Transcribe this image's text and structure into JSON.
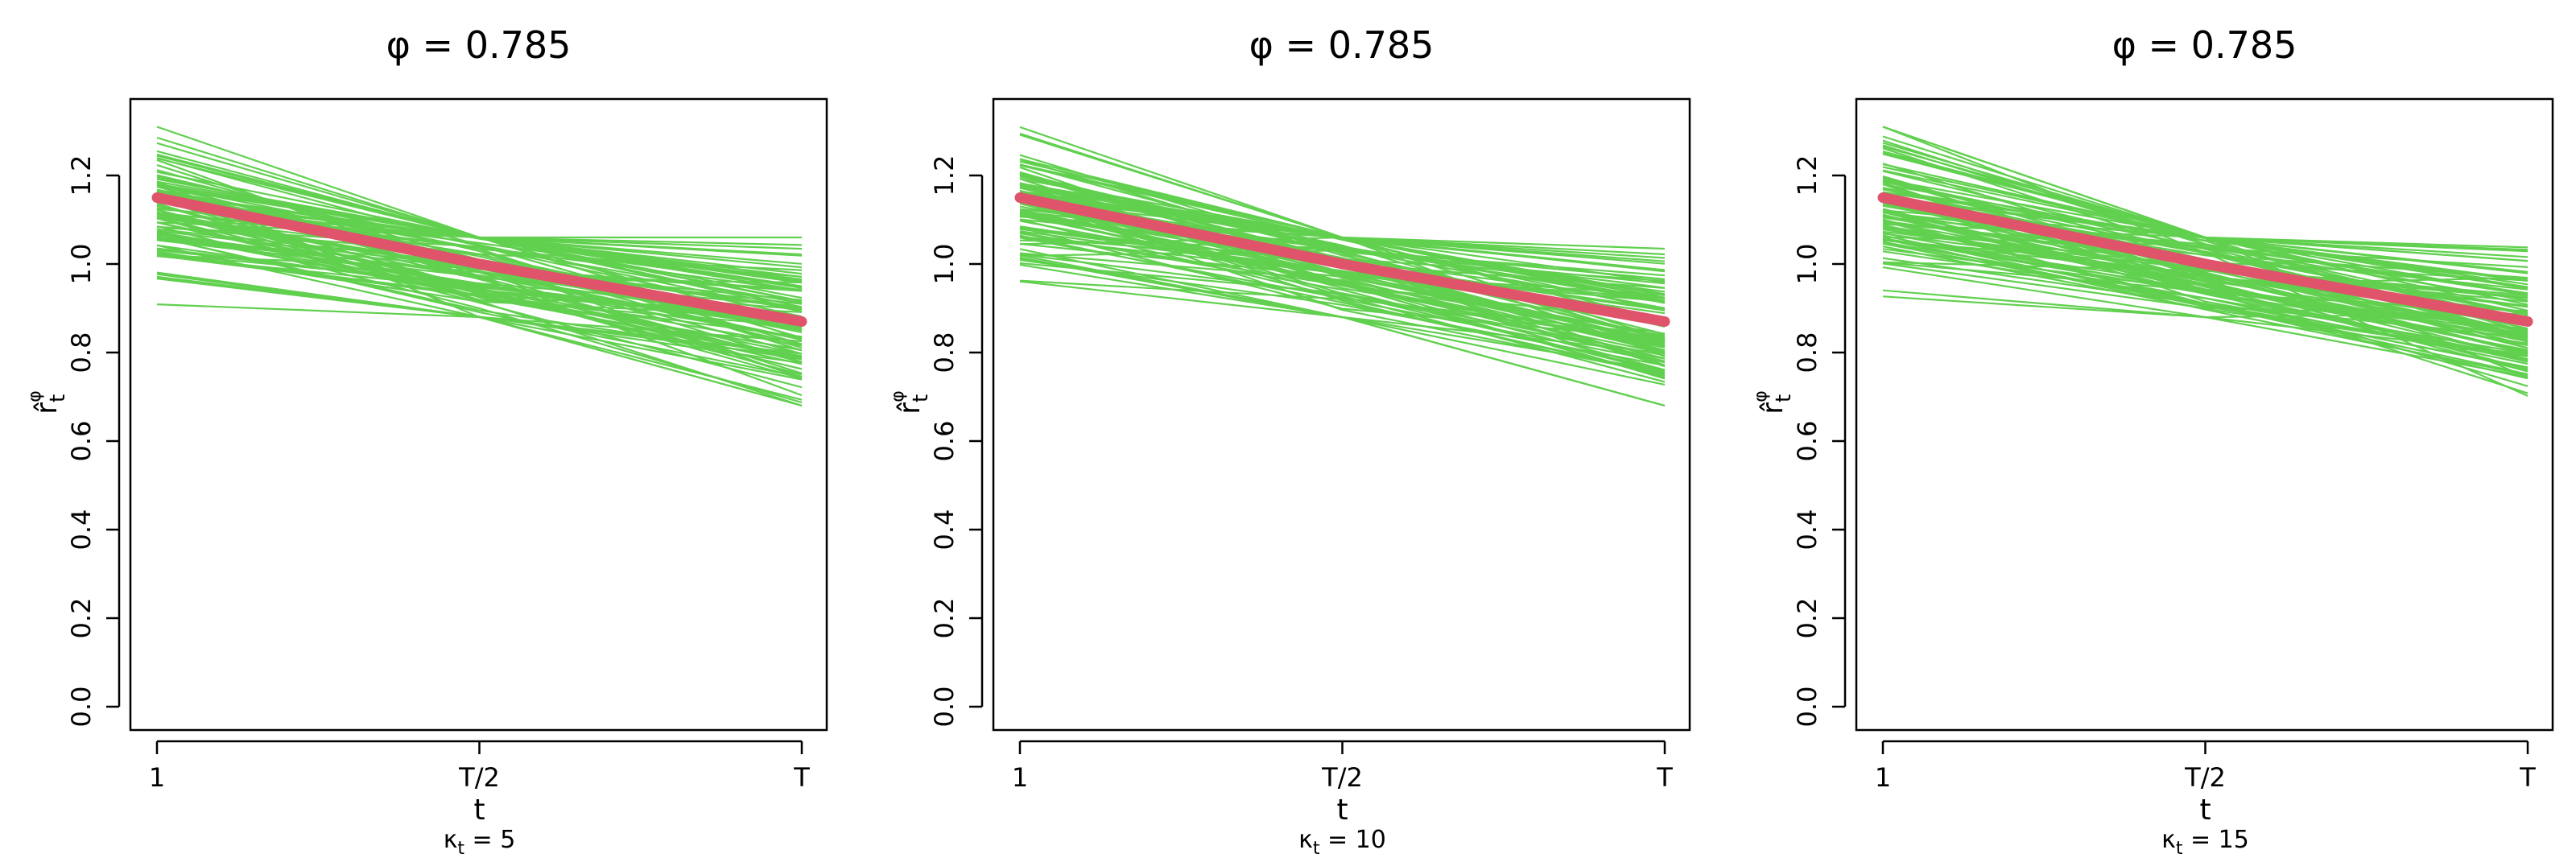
{
  "colors": {
    "replicates": "#61d04f",
    "truth": "#df536b",
    "axis": "#000000"
  },
  "panels": [
    {
      "title": "φ = 0.785",
      "xlabel": "t",
      "ylabel": "r̂ₜ^φ",
      "sub_symbol": "κ",
      "sub_index": "t",
      "sub_value": "= 5"
    },
    {
      "title": "φ = 0.785",
      "xlabel": "t",
      "ylabel": "r̂ₜ^φ",
      "sub_symbol": "κ",
      "sub_index": "t",
      "sub_value": "= 10"
    },
    {
      "title": "φ = 0.785",
      "xlabel": "t",
      "ylabel": "r̂ₜ^φ",
      "sub_symbol": "κ",
      "sub_index": "t",
      "sub_value": "= 15"
    }
  ],
  "chart_data": [
    {
      "type": "line",
      "title": "φ = 0.785",
      "xlabel": "t",
      "ylabel": "r̂ₜ^φ",
      "caption": "κt = 5",
      "x_tick_labels": [
        "1",
        "T/2",
        "T"
      ],
      "y_ticks": [
        "0.0",
        "0.2",
        "0.4",
        "0.6",
        "0.8",
        "1.0",
        "1.2"
      ],
      "ylim": [
        0,
        1.3
      ],
      "grid": false,
      "truth": {
        "x": [
          0,
          0.5,
          1
        ],
        "values": [
          1.15,
          1.0,
          0.87
        ]
      },
      "replicates": {
        "count_shown": 100,
        "start_range": [
          0.87,
          1.31
        ],
        "mid_range": [
          0.88,
          1.06
        ],
        "end_range": [
          0.68,
          1.06
        ]
      }
    },
    {
      "type": "line",
      "title": "φ = 0.785",
      "xlabel": "t",
      "ylabel": "r̂ₜ^φ",
      "caption": "κt = 10",
      "x_tick_labels": [
        "1",
        "T/2",
        "T"
      ],
      "y_ticks": [
        "0.0",
        "0.2",
        "0.4",
        "0.6",
        "0.8",
        "1.0",
        "1.2"
      ],
      "ylim": [
        0,
        1.3
      ],
      "grid": false,
      "truth": {
        "x": [
          0,
          0.5,
          1
        ],
        "values": [
          1.15,
          1.0,
          0.87
        ]
      },
      "replicates": {
        "count_shown": 100,
        "start_range": [
          0.87,
          1.31
        ],
        "mid_range": [
          0.88,
          1.06
        ],
        "end_range": [
          0.68,
          1.06
        ]
      }
    },
    {
      "type": "line",
      "title": "φ = 0.785",
      "xlabel": "t",
      "ylabel": "r̂ₜ^φ",
      "caption": "κt = 15",
      "x_tick_labels": [
        "1",
        "T/2",
        "T"
      ],
      "y_ticks": [
        "0.0",
        "0.2",
        "0.4",
        "0.6",
        "0.8",
        "1.0",
        "1.2"
      ],
      "ylim": [
        0,
        1.3
      ],
      "grid": false,
      "truth": {
        "x": [
          0,
          0.5,
          1
        ],
        "values": [
          1.15,
          1.0,
          0.87
        ]
      },
      "replicates": {
        "count_shown": 100,
        "start_range": [
          0.87,
          1.31
        ],
        "mid_range": [
          0.88,
          1.06
        ],
        "end_range": [
          0.68,
          1.06
        ]
      }
    }
  ]
}
